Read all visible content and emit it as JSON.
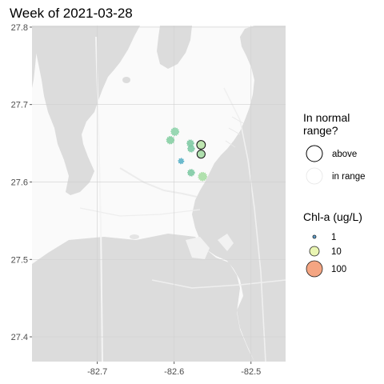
{
  "chart_data": {
    "type": "scatter",
    "title": "Week of 2021-03-28",
    "xlabel": "",
    "ylabel": "",
    "xlim": [
      -82.785,
      -82.455
    ],
    "ylim": [
      27.368,
      27.802
    ],
    "x_ticks": [
      -82.7,
      -82.6,
      -82.5
    ],
    "x_tick_labels": [
      "-82.7",
      "-82.6",
      "-82.5"
    ],
    "y_ticks": [
      27.4,
      27.5,
      27.6,
      27.7,
      27.8
    ],
    "y_tick_labels": [
      "27.4",
      "27.5",
      "27.6",
      "27.7",
      "27.8"
    ],
    "grid": true,
    "basemap": "greyscale map tiles (Tampa Bay area)",
    "points": [
      {
        "lon": -82.599,
        "lat": 27.665,
        "chla": 5.0,
        "range": "in range",
        "color": "#8fd4ac"
      },
      {
        "lon": -82.605,
        "lat": 27.654,
        "chla": 4.5,
        "range": "in range",
        "color": "#87cfa4"
      },
      {
        "lon": -82.579,
        "lat": 27.65,
        "chla": 3.5,
        "range": "in range",
        "color": "#7fcaa4"
      },
      {
        "lon": -82.578,
        "lat": 27.643,
        "chla": 3.5,
        "range": "in range",
        "color": "#7fcaa6"
      },
      {
        "lon": -82.565,
        "lat": 27.648,
        "chla": 7.0,
        "range": "above",
        "color": "#b8e3a8"
      },
      {
        "lon": -82.565,
        "lat": 27.636,
        "chla": 6.0,
        "range": "above",
        "color": "#a6dca5"
      },
      {
        "lon": -82.591,
        "lat": 27.627,
        "chla": 1.6,
        "range": "in range",
        "color": "#5cb2c8"
      },
      {
        "lon": -82.578,
        "lat": 27.612,
        "chla": 3.5,
        "range": "in range",
        "color": "#7fcaa4"
      },
      {
        "lon": -82.563,
        "lat": 27.607,
        "chla": 6.0,
        "range": "in range",
        "color": "#a9dea5"
      }
    ],
    "legend": {
      "position": "right",
      "range": {
        "title": "In normal range?",
        "title_lines": [
          "In normal",
          "range?"
        ],
        "items": [
          {
            "label": "above",
            "ring": true
          },
          {
            "label": "in range",
            "ring": false
          }
        ]
      },
      "size": {
        "title": "Chl-a (ug/L)",
        "items": [
          {
            "label": "1",
            "value": 1,
            "color": "#5e9fce"
          },
          {
            "label": "10",
            "value": 10,
            "color": "#e9f5b2"
          },
          {
            "label": "100",
            "value": 100,
            "color": "#f4a582"
          }
        ]
      }
    }
  }
}
